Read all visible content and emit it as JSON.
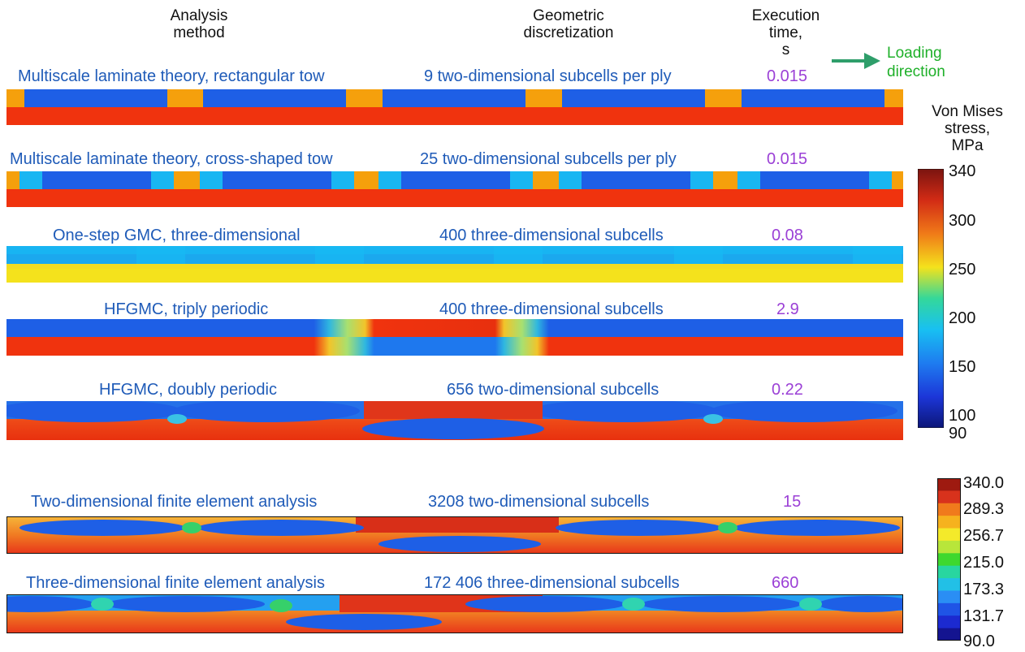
{
  "headers": {
    "method": [
      "Analysis",
      "method"
    ],
    "discretization": [
      "Geometric",
      "discretization"
    ],
    "time": [
      "Execution",
      "time,",
      "s"
    ]
  },
  "loading": {
    "lines": [
      "Loading",
      "direction"
    ],
    "arrow_color": "#2e9e6a"
  },
  "rows": [
    {
      "method": "Multiscale laminate theory, rectangular tow",
      "discretization": "9 two-dimensional subcells per ply",
      "time": "0.015"
    },
    {
      "method": "Multiscale laminate theory, cross-shaped tow",
      "discretization": "25 two-dimensional subcells per ply",
      "time": "0.015"
    },
    {
      "method": "One-step GMC, three-dimensional",
      "discretization": "400 three-dimensional subcells",
      "time": "0.08"
    },
    {
      "method": "HFGMC, triply periodic",
      "discretization": "400 three-dimensional subcells",
      "time": "2.9"
    },
    {
      "method": "HFGMC, doubly periodic",
      "discretization": "656 two-dimensional subcells",
      "time": "0.22"
    },
    {
      "method": "Two-dimensional finite element analysis",
      "discretization": "3208 two-dimensional subcells",
      "time": "15"
    },
    {
      "method": "Three-dimensional finite element analysis",
      "discretization": "172 406 three-dimensional subcells",
      "time": "660"
    }
  ],
  "colorbar1": {
    "title": [
      "Von Mises",
      "stress,",
      "MPa"
    ],
    "ticks": [
      "340",
      "300",
      "250",
      "200",
      "150",
      "100",
      "90"
    ]
  },
  "colorbar2": {
    "ticks": [
      "340.0",
      "289.3",
      "256.7",
      "215.0",
      "173.3",
      "131.7",
      "90.0"
    ],
    "colors": [
      "#9e1a10",
      "#d8321c",
      "#f07a1c",
      "#f6b21e",
      "#f4ea2a",
      "#b8e63a",
      "#3ed82e",
      "#28d6a0",
      "#22c0e6",
      "#2a8ef4",
      "#1f54e6",
      "#1c2ad0",
      "#141490"
    ]
  },
  "colors": {
    "method_text": "#1f5bb8",
    "time_text": "#9b40d6",
    "orange": "#f5a00c",
    "blue": "#1e5fe6",
    "red": "#f0330e",
    "cyan": "#19b6f2",
    "yellow": "#f4e21c"
  }
}
